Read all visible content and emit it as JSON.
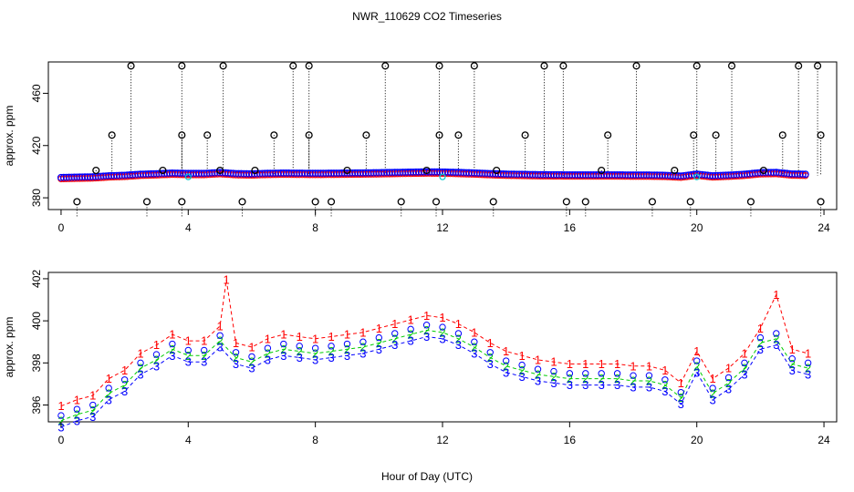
{
  "title": "NWR_110629  CO2 Timeseries",
  "xlabel": "Hour of Day (UTC)",
  "colors": {
    "series1": "#ff0000",
    "series2": "#00cc00",
    "series3": "#0000ff",
    "outlier": "#000000",
    "cyan": "#00cccc",
    "guide": "#000000"
  },
  "chart_data": [
    {
      "type": "scatter",
      "panel": "top",
      "ylabel": "approx. ppm",
      "xlim": [
        -0.4,
        24.4
      ],
      "ylim": [
        371,
        484
      ],
      "xticks": [
        0,
        4,
        8,
        12,
        16,
        20,
        24
      ],
      "xtick_labels": [
        "0",
        "4",
        "8",
        "12",
        "16",
        "20",
        "24"
      ],
      "yticks": [
        380,
        420,
        460
      ],
      "ytick_labels": [
        "380",
        "420",
        "460"
      ],
      "baseline_points": [
        [
          0.0,
          395.5
        ],
        [
          0.5,
          395.8
        ],
        [
          1.0,
          396.0
        ],
        [
          1.5,
          396.8
        ],
        [
          2.0,
          397.2
        ],
        [
          2.5,
          398.0
        ],
        [
          3.0,
          398.4
        ],
        [
          3.5,
          398.9
        ],
        [
          4.0,
          398.6
        ],
        [
          4.5,
          398.6
        ],
        [
          5.0,
          399.3
        ],
        [
          5.5,
          398.5
        ],
        [
          6.0,
          398.3
        ],
        [
          6.5,
          398.7
        ],
        [
          7.0,
          398.9
        ],
        [
          7.5,
          398.8
        ],
        [
          8.0,
          398.7
        ],
        [
          8.5,
          398.8
        ],
        [
          9.0,
          398.9
        ],
        [
          9.5,
          399.0
        ],
        [
          10.0,
          399.2
        ],
        [
          10.5,
          399.4
        ],
        [
          11.0,
          399.6
        ],
        [
          11.5,
          399.8
        ],
        [
          12.0,
          399.7
        ],
        [
          12.5,
          399.4
        ],
        [
          13.0,
          399.0
        ],
        [
          13.5,
          398.5
        ],
        [
          14.0,
          398.1
        ],
        [
          14.5,
          397.9
        ],
        [
          15.0,
          397.7
        ],
        [
          15.5,
          397.6
        ],
        [
          16.0,
          397.5
        ],
        [
          16.5,
          397.5
        ],
        [
          17.0,
          397.5
        ],
        [
          17.5,
          397.5
        ],
        [
          18.0,
          397.4
        ],
        [
          18.5,
          397.4
        ],
        [
          19.0,
          397.2
        ],
        [
          19.5,
          396.6
        ],
        [
          20.0,
          398.1
        ],
        [
          20.5,
          396.8
        ],
        [
          21.0,
          397.3
        ],
        [
          21.5,
          398.0
        ],
        [
          22.0,
          399.2
        ],
        [
          22.5,
          399.4
        ],
        [
          23.0,
          398.2
        ],
        [
          23.5,
          398.0
        ]
      ],
      "high_outliers": [
        [
          2.2,
          481
        ],
        [
          3.8,
          481
        ],
        [
          5.1,
          481
        ],
        [
          7.3,
          481
        ],
        [
          7.8,
          481
        ],
        [
          10.2,
          481
        ],
        [
          11.9,
          481
        ],
        [
          13.0,
          481
        ],
        [
          15.2,
          481
        ],
        [
          15.8,
          481
        ],
        [
          18.1,
          481
        ],
        [
          20.0,
          481
        ],
        [
          21.1,
          481
        ],
        [
          23.2,
          481
        ],
        [
          23.8,
          481
        ],
        [
          1.6,
          428
        ],
        [
          3.8,
          428
        ],
        [
          4.6,
          428
        ],
        [
          6.7,
          428
        ],
        [
          7.8,
          428
        ],
        [
          9.6,
          428
        ],
        [
          11.9,
          428
        ],
        [
          12.5,
          428
        ],
        [
          14.6,
          428
        ],
        [
          17.2,
          428
        ],
        [
          19.9,
          428
        ],
        [
          20.6,
          428
        ],
        [
          22.7,
          428
        ],
        [
          23.9,
          428
        ],
        [
          1.1,
          401
        ],
        [
          3.2,
          401
        ],
        [
          5.0,
          401
        ],
        [
          6.1,
          401
        ],
        [
          9.0,
          401
        ],
        [
          11.5,
          401
        ],
        [
          13.7,
          401
        ],
        [
          17.0,
          401
        ],
        [
          19.3,
          401
        ],
        [
          22.1,
          401
        ]
      ],
      "low_outliers": [
        [
          0.5,
          377
        ],
        [
          2.7,
          377
        ],
        [
          3.8,
          377
        ],
        [
          5.7,
          377
        ],
        [
          8.0,
          377
        ],
        [
          8.5,
          377
        ],
        [
          10.7,
          377
        ],
        [
          11.8,
          377
        ],
        [
          13.6,
          377
        ],
        [
          15.9,
          377
        ],
        [
          16.5,
          377
        ],
        [
          18.6,
          377
        ],
        [
          19.8,
          377
        ],
        [
          21.7,
          377
        ],
        [
          23.9,
          377
        ]
      ],
      "cyan_points": [
        [
          4.0,
          396
        ],
        [
          12.0,
          396
        ],
        [
          20.0,
          396
        ]
      ]
    },
    {
      "type": "scatter",
      "panel": "bottom",
      "ylabel": "approx. ppm",
      "xlim": [
        -0.4,
        24.4
      ],
      "ylim": [
        395.2,
        402.3
      ],
      "xticks": [
        0,
        4,
        8,
        12,
        16,
        20,
        24
      ],
      "xtick_labels": [
        "0",
        "4",
        "8",
        "12",
        "16",
        "20",
        "24"
      ],
      "yticks": [
        396,
        398,
        400,
        402
      ],
      "ytick_labels": [
        "396",
        "398",
        "400",
        "402"
      ],
      "series": [
        {
          "name": "1",
          "marker": "1",
          "offset": 0.45,
          "x": [
            0.0,
            0.5,
            1.0,
            1.5,
            2.0,
            2.5,
            3.0,
            3.5,
            4.0,
            4.5,
            5.0,
            5.2,
            5.5,
            6.0,
            6.5,
            7.0,
            7.5,
            8.0,
            8.5,
            9.0,
            9.5,
            10.0,
            10.5,
            11.0,
            11.5,
            12.0,
            12.5,
            13.0,
            13.5,
            14.0,
            14.5,
            15.0,
            15.5,
            16.0,
            16.5,
            17.0,
            17.5,
            18.0,
            18.5,
            19.0,
            19.5,
            20.0,
            20.5,
            21.0,
            21.5,
            22.0,
            22.5,
            23.0,
            23.5
          ],
          "values": [
            395.5,
            395.8,
            396.0,
            396.8,
            397.2,
            398.0,
            398.4,
            398.9,
            398.6,
            398.6,
            399.3,
            401.5,
            398.5,
            398.3,
            398.7,
            398.9,
            398.8,
            398.7,
            398.8,
            398.9,
            399.0,
            399.2,
            399.4,
            399.6,
            399.8,
            399.7,
            399.4,
            399.0,
            398.5,
            398.1,
            397.9,
            397.7,
            397.6,
            397.5,
            397.5,
            397.5,
            397.5,
            397.4,
            397.4,
            397.2,
            396.6,
            398.1,
            396.8,
            397.3,
            398.0,
            399.2,
            400.8,
            398.2,
            398.0
          ]
        },
        {
          "name": "2",
          "marker": "2",
          "offset": -0.25,
          "x": [
            0.0,
            0.5,
            1.0,
            1.5,
            2.0,
            2.5,
            3.0,
            3.5,
            4.0,
            4.5,
            5.0,
            5.5,
            6.0,
            6.5,
            7.0,
            7.5,
            8.0,
            8.5,
            9.0,
            9.5,
            10.0,
            10.5,
            11.0,
            11.5,
            12.0,
            12.5,
            13.0,
            13.5,
            14.0,
            14.5,
            15.0,
            15.5,
            16.0,
            16.5,
            17.0,
            17.5,
            18.0,
            18.5,
            19.0,
            19.5,
            20.0,
            20.5,
            21.0,
            21.5,
            22.0,
            22.5,
            23.0,
            23.5
          ],
          "values": [
            395.5,
            395.8,
            396.0,
            396.8,
            397.2,
            398.0,
            398.4,
            398.9,
            398.6,
            398.6,
            399.3,
            398.5,
            398.3,
            398.7,
            398.9,
            398.8,
            398.7,
            398.8,
            398.9,
            399.0,
            399.2,
            399.4,
            399.6,
            399.8,
            399.7,
            399.4,
            399.0,
            398.5,
            398.1,
            397.9,
            397.7,
            397.6,
            397.5,
            397.5,
            397.5,
            397.5,
            397.4,
            397.4,
            397.2,
            396.6,
            398.1,
            396.8,
            397.3,
            398.0,
            399.2,
            399.4,
            398.2,
            398.0
          ]
        },
        {
          "name": "3",
          "marker": "3",
          "offset": -0.55,
          "x": [
            0.0,
            0.5,
            1.0,
            1.5,
            2.0,
            2.5,
            3.0,
            3.5,
            4.0,
            4.5,
            5.0,
            5.5,
            6.0,
            6.5,
            7.0,
            7.5,
            8.0,
            8.5,
            9.0,
            9.5,
            10.0,
            10.5,
            11.0,
            11.5,
            12.0,
            12.5,
            13.0,
            13.5,
            14.0,
            14.5,
            15.0,
            15.5,
            16.0,
            16.5,
            17.0,
            17.5,
            18.0,
            18.5,
            19.0,
            19.5,
            20.0,
            20.5,
            21.0,
            21.5,
            22.0,
            22.5,
            23.0,
            23.5
          ],
          "values": [
            395.5,
            395.8,
            396.0,
            396.8,
            397.2,
            398.0,
            398.4,
            398.9,
            398.6,
            398.6,
            399.3,
            398.5,
            398.3,
            398.7,
            398.9,
            398.8,
            398.7,
            398.8,
            398.9,
            399.0,
            399.2,
            399.4,
            399.6,
            399.8,
            399.7,
            399.4,
            399.0,
            398.5,
            398.1,
            397.9,
            397.7,
            397.6,
            397.5,
            397.5,
            397.5,
            397.5,
            397.4,
            397.4,
            397.2,
            396.6,
            398.1,
            396.8,
            397.3,
            398.0,
            399.2,
            399.4,
            398.2,
            398.0
          ]
        },
        {
          "name": "avg",
          "marker": "o",
          "offset": 0,
          "x": [
            0.0,
            0.5,
            1.0,
            1.5,
            2.0,
            2.5,
            3.0,
            3.5,
            4.0,
            4.5,
            5.0,
            5.5,
            6.0,
            6.5,
            7.0,
            7.5,
            8.0,
            8.5,
            9.0,
            9.5,
            10.0,
            10.5,
            11.0,
            11.5,
            12.0,
            12.5,
            13.0,
            13.5,
            14.0,
            14.5,
            15.0,
            15.5,
            16.0,
            16.5,
            17.0,
            17.5,
            18.0,
            18.5,
            19.0,
            19.5,
            20.0,
            20.5,
            21.0,
            21.5,
            22.0,
            22.5,
            23.0,
            23.5
          ],
          "values": [
            395.5,
            395.8,
            396.0,
            396.8,
            397.2,
            398.0,
            398.4,
            398.9,
            398.6,
            398.6,
            399.3,
            398.5,
            398.3,
            398.7,
            398.9,
            398.8,
            398.7,
            398.8,
            398.9,
            399.0,
            399.2,
            399.4,
            399.6,
            399.8,
            399.7,
            399.4,
            399.0,
            398.5,
            398.1,
            397.9,
            397.7,
            397.6,
            397.5,
            397.5,
            397.5,
            397.5,
            397.4,
            397.4,
            397.2,
            396.6,
            398.1,
            396.8,
            397.3,
            398.0,
            399.2,
            399.4,
            398.2,
            398.0
          ]
        }
      ]
    }
  ]
}
